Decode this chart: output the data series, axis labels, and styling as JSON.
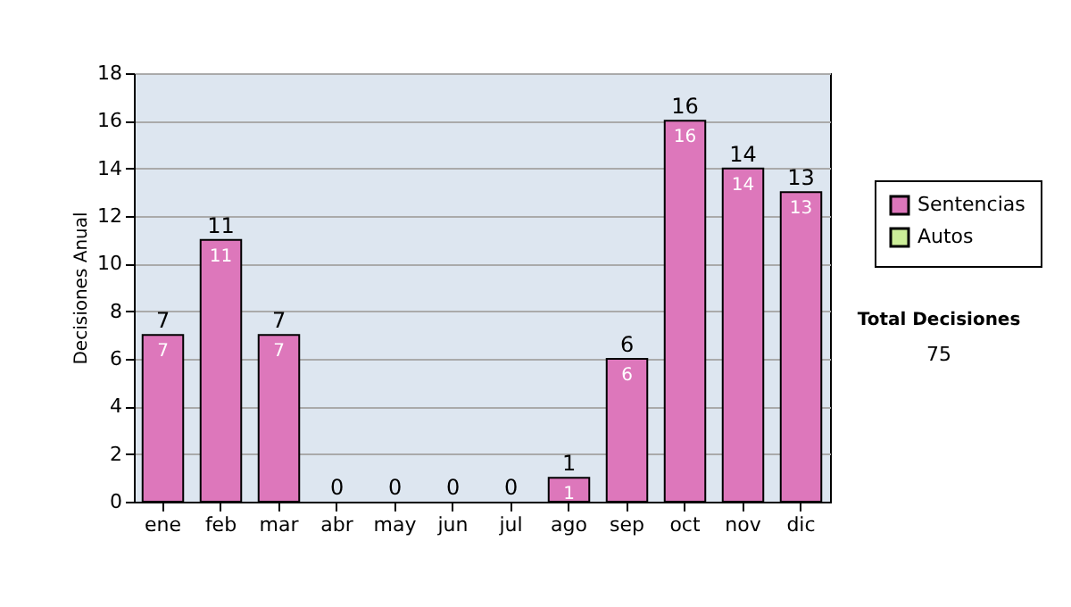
{
  "chart_data": {
    "type": "bar",
    "stacked": true,
    "ylabel": "Decisiones Anual",
    "categories": [
      "ene",
      "feb",
      "mar",
      "abr",
      "may",
      "jun",
      "jul",
      "ago",
      "sep",
      "oct",
      "nov",
      "dic"
    ],
    "series": [
      {
        "name": "Sentencias",
        "color": "#dd77bb",
        "values": [
          7,
          11,
          7,
          0,
          0,
          0,
          0,
          1,
          6,
          16,
          14,
          13
        ],
        "value_labels": [
          "7",
          "11",
          "7",
          null,
          null,
          null,
          null,
          "1",
          "6",
          "16",
          "14",
          "13"
        ]
      },
      {
        "name": "Autos",
        "color": "#ccee99",
        "values": [
          0,
          0,
          0,
          0,
          0,
          0,
          0,
          0,
          0,
          0,
          0,
          0
        ]
      }
    ],
    "totals": [
      "7",
      "11",
      "7",
      "0",
      "0",
      "0",
      "0",
      "1",
      "6",
      "16",
      "14",
      "13"
    ],
    "ylim": [
      0,
      18
    ],
    "yticks": [
      0,
      2,
      4,
      6,
      8,
      10,
      12,
      14,
      16,
      18
    ],
    "grid": "y",
    "legend": "right",
    "annotations": [
      "Total Decisiones",
      "75"
    ]
  }
}
